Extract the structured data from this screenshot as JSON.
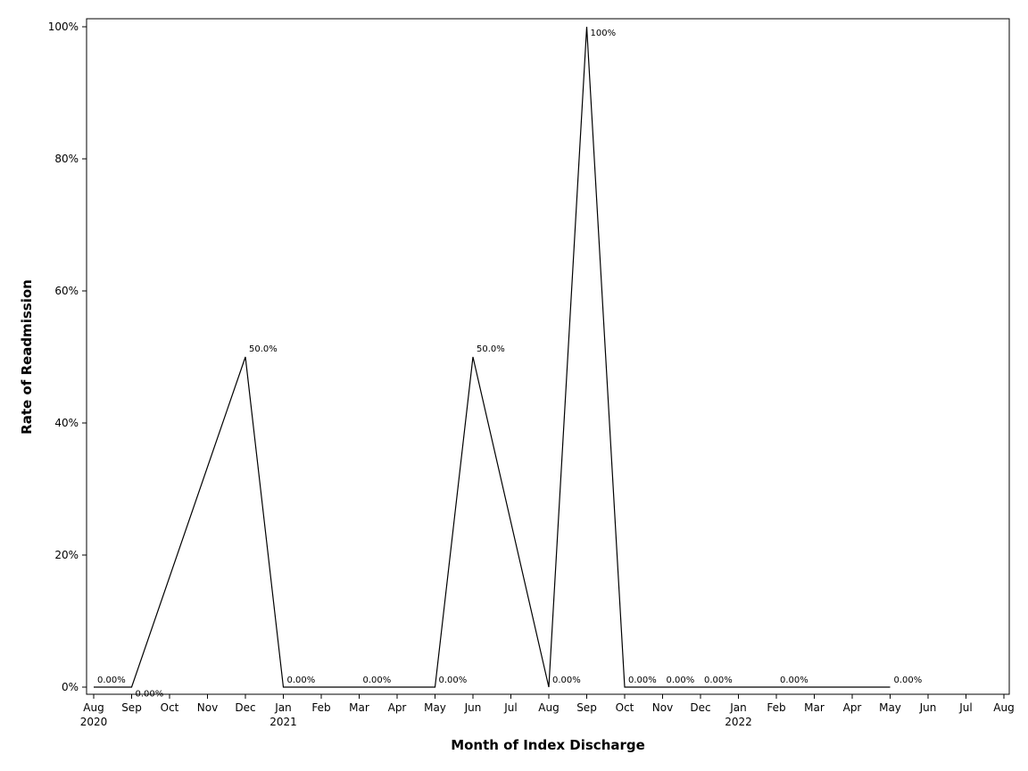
{
  "chart_data": {
    "type": "line",
    "xlabel": "Month of Index Discharge",
    "ylabel": "Rate of Readmission",
    "ylim": [
      0,
      100
    ],
    "y_unit": "%",
    "y_ticks": [
      {
        "value": 0,
        "label": "0%"
      },
      {
        "value": 20,
        "label": "20%"
      },
      {
        "value": 40,
        "label": "40%"
      },
      {
        "value": 60,
        "label": "60%"
      },
      {
        "value": 80,
        "label": "80%"
      },
      {
        "value": 100,
        "label": "100%"
      }
    ],
    "x_axis_range": [
      "2020-08",
      "2022-08"
    ],
    "x_ticks": [
      {
        "month": "2020-08",
        "label": "Aug",
        "year": "2020"
      },
      {
        "month": "2020-09",
        "label": "Sep"
      },
      {
        "month": "2020-10",
        "label": "Oct"
      },
      {
        "month": "2020-11",
        "label": "Nov"
      },
      {
        "month": "2020-12",
        "label": "Dec"
      },
      {
        "month": "2021-01",
        "label": "Jan",
        "year": "2021"
      },
      {
        "month": "2021-02",
        "label": "Feb"
      },
      {
        "month": "2021-03",
        "label": "Mar"
      },
      {
        "month": "2021-04",
        "label": "Apr"
      },
      {
        "month": "2021-05",
        "label": "May"
      },
      {
        "month": "2021-06",
        "label": "Jun"
      },
      {
        "month": "2021-07",
        "label": "Jul"
      },
      {
        "month": "2021-08",
        "label": "Aug"
      },
      {
        "month": "2021-09",
        "label": "Sep"
      },
      {
        "month": "2021-10",
        "label": "Oct"
      },
      {
        "month": "2021-11",
        "label": "Nov"
      },
      {
        "month": "2021-12",
        "label": "Dec"
      },
      {
        "month": "2022-01",
        "label": "Jan",
        "year": "2022"
      },
      {
        "month": "2022-02",
        "label": "Feb"
      },
      {
        "month": "2022-03",
        "label": "Mar"
      },
      {
        "month": "2022-04",
        "label": "Apr"
      },
      {
        "month": "2022-05",
        "label": "May"
      },
      {
        "month": "2022-06",
        "label": "Jun"
      },
      {
        "month": "2022-07",
        "label": "Jul"
      },
      {
        "month": "2022-08",
        "label": "Aug"
      }
    ],
    "series": [
      {
        "points": [
          {
            "month": "2020-08",
            "value": 0,
            "label": "0.00%"
          },
          {
            "month": "2020-09",
            "value": 0,
            "label": "0.00%"
          },
          {
            "month": "2020-12",
            "value": 50,
            "label": "50.0%"
          },
          {
            "month": "2021-01",
            "value": 0,
            "label": "0.00%"
          },
          {
            "month": "2021-03",
            "value": 0,
            "label": "0.00%"
          },
          {
            "month": "2021-05",
            "value": 0,
            "label": "0.00%"
          },
          {
            "month": "2021-06",
            "value": 50,
            "label": "50.0%"
          },
          {
            "month": "2021-08",
            "value": 0,
            "label": "0.00%"
          },
          {
            "month": "2021-09",
            "value": 100,
            "label": "100%"
          },
          {
            "month": "2021-10",
            "value": 0,
            "label": "0.00%"
          },
          {
            "month": "2021-11",
            "value": 0,
            "label": "0.00%"
          },
          {
            "month": "2021-12",
            "value": 0,
            "label": "0.00%"
          },
          {
            "month": "2022-02",
            "value": 0,
            "label": "0.00%"
          },
          {
            "month": "2022-05",
            "value": 0,
            "label": "0.00%"
          }
        ]
      }
    ],
    "grid": false,
    "legend": "none",
    "line_color": "#000000"
  }
}
